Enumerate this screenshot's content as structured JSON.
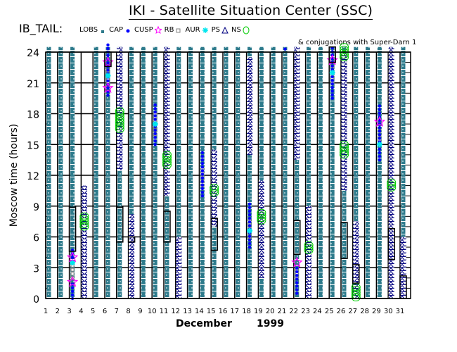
{
  "chart_data": {
    "type": "scatter",
    "title": "IKI - Satellite Situation Center (SSC)",
    "mission": "IB_TAIL:",
    "subtitle": "& conjugations with Super-Darn 1",
    "ylabel": "Moscow time (hours)",
    "xlabel_month": "December",
    "xlabel_year": "1999",
    "ylim": [
      0,
      24
    ],
    "xlim": [
      1,
      31
    ],
    "yticks": [
      "0",
      "3",
      "6",
      "9",
      "12",
      "15",
      "18",
      "21",
      "24"
    ],
    "xticks": [
      "1",
      "2",
      "3",
      "4",
      "5",
      "6",
      "7",
      "8",
      "9",
      "10",
      "11",
      "12",
      "13",
      "14",
      "15",
      "16",
      "17",
      "18",
      "19",
      "20",
      "21",
      "22",
      "23",
      "24",
      "25",
      "26",
      "27",
      "28",
      "29",
      "30",
      "31"
    ],
    "legend": [
      {
        "label": "LOBS",
        "color": "#2e7b8c",
        "symbol": "square"
      },
      {
        "label": "CAP",
        "color": "#0000ff",
        "symbol": "dot"
      },
      {
        "label": "CUSP",
        "color": "#ff00ff",
        "symbol": "star"
      },
      {
        "label": "RB",
        "color": "#808080",
        "symbol": "open-square"
      },
      {
        "label": "AUR",
        "color": "#00e5ee",
        "symbol": "asterisk"
      },
      {
        "label": "PS",
        "color": "#000080",
        "symbol": "triangle"
      },
      {
        "label": "NS",
        "color": "#00cc00",
        "symbol": "circle"
      }
    ],
    "lobs_days": [
      1,
      2,
      3,
      5,
      6,
      7,
      8,
      9,
      10,
      11,
      12,
      13,
      14,
      15,
      16,
      17,
      18,
      19,
      20,
      21,
      22,
      23,
      24,
      25,
      26,
      27,
      28,
      29,
      30,
      31
    ],
    "ps": [
      [
        4,
        0,
        11
      ],
      [
        7,
        12.5,
        24.5
      ],
      [
        8,
        0,
        8.2
      ],
      [
        11,
        10,
        24.5
      ],
      [
        12,
        0,
        6
      ],
      [
        15,
        7,
        14.5
      ],
      [
        18,
        14,
        23.5
      ],
      [
        19,
        2,
        11.5
      ],
      [
        22,
        13.5,
        24.5
      ],
      [
        23,
        0,
        9
      ],
      [
        26,
        10.5,
        24
      ],
      [
        27,
        0,
        7.5
      ],
      [
        30,
        0,
        24.5
      ],
      [
        31,
        0,
        6
      ]
    ],
    "ns": [
      [
        4,
        7,
        8.2
      ],
      [
        7,
        16.5,
        18.3
      ],
      [
        11,
        13,
        14
      ],
      [
        15,
        10.3,
        11
      ],
      [
        19,
        7.6,
        8.4
      ],
      [
        23,
        4.7,
        5.4
      ],
      [
        26,
        23.5,
        24.5
      ],
      [
        26,
        14,
        15
      ],
      [
        27,
        0.1,
        1.2
      ],
      [
        30,
        10.8,
        11.5
      ]
    ],
    "cap": [
      [
        3,
        0,
        1.5
      ],
      [
        3,
        4,
        5
      ],
      [
        6,
        19.8,
        24.8
      ],
      [
        10,
        15,
        19
      ],
      [
        14,
        10,
        14.5
      ],
      [
        18,
        5,
        9.5
      ],
      [
        21,
        24.3,
        24.5
      ],
      [
        22,
        0.5,
        3.2
      ],
      [
        25,
        19.5,
        24.5
      ],
      [
        29,
        13.5,
        19
      ]
    ],
    "rb": [
      [
        3,
        2,
        3.5
      ],
      [
        6,
        21,
        22.5
      ],
      [
        10,
        16,
        18
      ],
      [
        14,
        11,
        13
      ],
      [
        18,
        6,
        8
      ],
      [
        22,
        2,
        3
      ],
      [
        25,
        21,
        22.8
      ],
      [
        29,
        15.5,
        16.5
      ]
    ],
    "cusp": [
      [
        3,
        1.6
      ],
      [
        3,
        4
      ],
      [
        6,
        20.5
      ],
      [
        6,
        23
      ],
      [
        22,
        3.5
      ],
      [
        25,
        23.2
      ],
      [
        29,
        17.2
      ]
    ],
    "aur": [
      [
        3,
        3.5
      ],
      [
        6,
        21.7
      ],
      [
        10,
        17
      ],
      [
        18,
        6.6
      ],
      [
        25,
        22
      ],
      [
        29,
        15
      ]
    ],
    "conj": [
      [
        3,
        4.6,
        8.9
      ],
      [
        6,
        22.6,
        24
      ],
      [
        7,
        5.5,
        8.9
      ],
      [
        8,
        5.5,
        6
      ],
      [
        11,
        5.5,
        8.5
      ],
      [
        15,
        4.7,
        7.8
      ],
      [
        22,
        4.3,
        7.6
      ],
      [
        25,
        23,
        24.5
      ],
      [
        26,
        3.9,
        7.4
      ],
      [
        27,
        1.5,
        3.3
      ],
      [
        30,
        3.8,
        6.8
      ],
      [
        31,
        0,
        2.2
      ]
    ]
  }
}
